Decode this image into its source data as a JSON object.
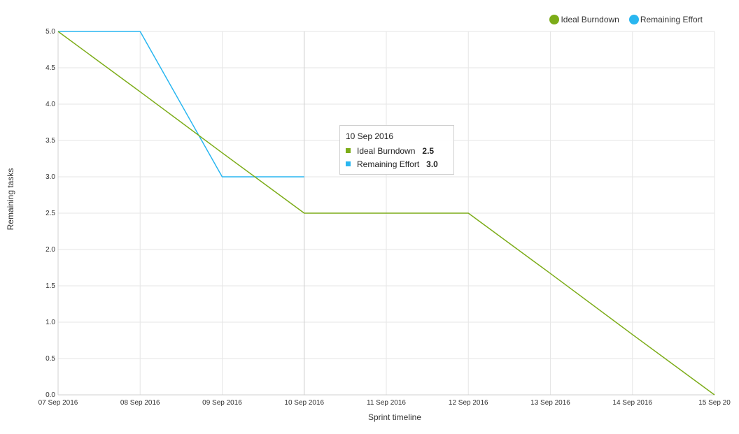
{
  "chart_data": {
    "type": "line",
    "title": "",
    "xlabel": "Sprint timeline",
    "ylabel": "Remaining tasks",
    "categories": [
      "07 Sep 2016",
      "08 Sep 2016",
      "09 Sep 2016",
      "10 Sep 2016",
      "11 Sep 2016",
      "12 Sep 2016",
      "13 Sep 2016",
      "14 Sep 2016",
      "15 Sep 20"
    ],
    "ylim": [
      0,
      5
    ],
    "yticks": [
      "0.0",
      "0.5",
      "1.0",
      "1.5",
      "2.0",
      "2.5",
      "3.0",
      "3.5",
      "4.0",
      "4.5",
      "5.0"
    ],
    "grid": true,
    "legend_position": "top-right",
    "series": [
      {
        "name": "Ideal Burndown",
        "color": "#7cac18",
        "values": [
          5.0,
          4.17,
          3.33,
          2.5,
          2.5,
          2.5,
          1.67,
          0.83,
          0.0
        ]
      },
      {
        "name": "Remaining Effort",
        "color": "#29b6f0",
        "values": [
          5.0,
          5.0,
          3.0,
          3.0,
          null,
          null,
          null,
          null,
          null
        ]
      }
    ]
  },
  "legend": {
    "items": [
      {
        "label": "Ideal Burndown",
        "color": "#7cac18"
      },
      {
        "label": "Remaining Effort",
        "color": "#29b6f0"
      }
    ]
  },
  "tooltip": {
    "title": "10 Sep 2016",
    "rows": [
      {
        "label": "Ideal Burndown",
        "value": "2.5",
        "color": "#7cac18"
      },
      {
        "label": "Remaining Effort",
        "value": "3.0",
        "color": "#29b6f0"
      }
    ]
  }
}
